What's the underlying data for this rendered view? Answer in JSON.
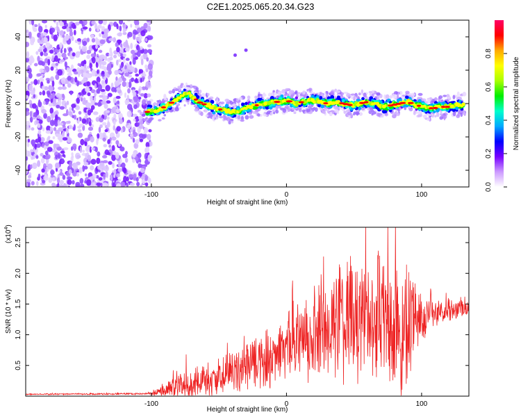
{
  "title": "C2E1.2025.065.20.34.G23",
  "chart_data": [
    {
      "type": "heatmap",
      "xlabel": "Height of straight line (km)",
      "ylabel": "Frequency (Hz)",
      "xlim": [
        -193,
        135
      ],
      "ylim": [
        -50,
        50
      ],
      "xticks": [
        -100,
        0,
        100
      ],
      "yticks": [
        -40,
        -20,
        0,
        20,
        40
      ],
      "colorbar": {
        "label": "Normalized spectral amplitude",
        "range": [
          0,
          1
        ],
        "ticks": [
          "0.0",
          "0.2",
          "0.4",
          "0.6",
          "0.8"
        ],
        "colors": [
          "#ffffff",
          "#cc99ff",
          "#7700ff",
          "#0000ff",
          "#00aaff",
          "#00ffcc",
          "#00ee00",
          "#aaff00",
          "#ffff00",
          "#ffaa00",
          "#ff0000",
          "#ff0066"
        ]
      },
      "noise_region_x": [
        -193,
        -100
      ],
      "trace": {
        "description_free": true,
        "x": [
          -103,
          -95,
          -88,
          -82,
          -77,
          -72,
          -68,
          -63,
          -58,
          -52,
          -46,
          -40,
          -34,
          -28,
          -22,
          -16,
          -10,
          -5,
          0,
          6,
          12,
          18,
          24,
          30,
          36,
          42,
          48,
          54,
          60,
          66,
          72,
          78,
          84,
          90,
          96,
          102,
          108,
          114,
          120,
          126,
          132
        ],
        "y": [
          -5,
          -4,
          -1,
          2,
          5,
          6,
          3,
          0,
          -1,
          -3,
          -4,
          -5,
          -4,
          -2,
          -1,
          0,
          1,
          1,
          2,
          0,
          1,
          2,
          1,
          0,
          1,
          0,
          -1,
          0,
          1,
          0,
          -2,
          -1,
          0,
          1,
          -1,
          -2,
          -3,
          -2,
          -2,
          -1,
          -1
        ]
      },
      "outliers": [
        {
          "x": -30,
          "y": 32
        },
        {
          "x": -38,
          "y": 29
        }
      ]
    },
    {
      "type": "line",
      "xlabel": "Height of straight line (km)",
      "ylabel": "SNR (10 * v/v)",
      "yscale_label": "(x10",
      "yscale_exp": "4",
      "xlim": [
        -193,
        135
      ],
      "ylim": [
        0,
        2.75
      ],
      "xticks": [
        -100,
        0,
        100
      ],
      "yticks": [
        0.5,
        1.0,
        1.5,
        2.0,
        2.5
      ],
      "ytick_labels": [
        "0.5",
        "1.0",
        "1.5",
        "2.0",
        "2.5"
      ],
      "color": "#ee2222",
      "envelope": {
        "x": [
          -193,
          -100,
          -90,
          -80,
          -70,
          -60,
          -50,
          -40,
          -30,
          -20,
          -10,
          0,
          10,
          20,
          30,
          40,
          50,
          60,
          70,
          80,
          90,
          100,
          110,
          120,
          135
        ],
        "base": [
          0.03,
          0.04,
          0.1,
          0.15,
          0.2,
          0.25,
          0.3,
          0.4,
          0.48,
          0.55,
          0.65,
          0.8,
          0.9,
          1.0,
          1.1,
          1.2,
          1.25,
          1.25,
          1.25,
          1.2,
          1.2,
          1.3,
          1.35,
          1.4,
          1.45
        ],
        "amp": [
          0.01,
          0.02,
          0.2,
          0.25,
          0.3,
          0.35,
          0.35,
          0.4,
          0.45,
          0.5,
          0.55,
          0.6,
          0.75,
          0.9,
          1.0,
          1.1,
          1.15,
          1.2,
          1.25,
          1.3,
          1.3,
          0.5,
          0.25,
          0.2,
          0.2
        ]
      }
    }
  ]
}
